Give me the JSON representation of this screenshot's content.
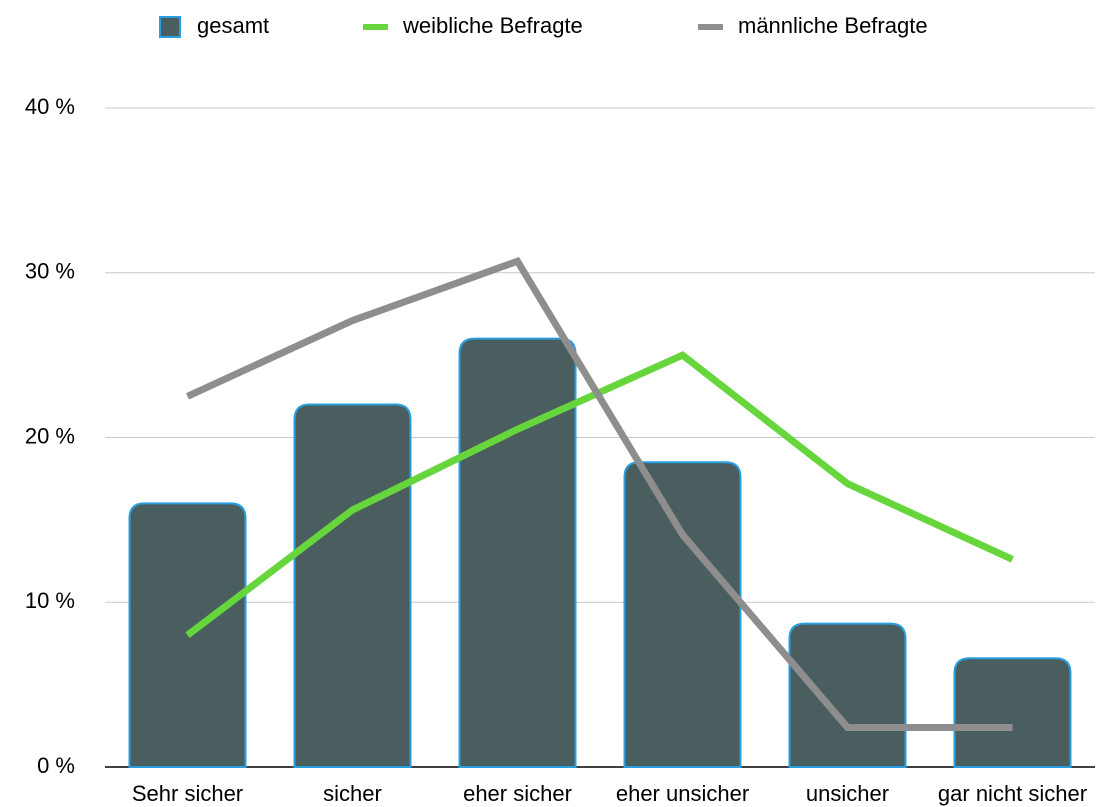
{
  "chart_data": {
    "type": "bar_line",
    "categories": [
      "Sehr sicher",
      "sicher",
      "eher sicher",
      "eher unsicher",
      "unsicher",
      "gar nicht sicher"
    ],
    "series": [
      {
        "name": "gesamt",
        "type": "bar",
        "color": "#4a5e60",
        "edge_color": "#2a9fe0",
        "values": [
          16,
          22,
          26,
          18.5,
          8.7,
          6.6
        ]
      },
      {
        "name": "weibliche Befragte",
        "type": "line",
        "color": "#66d63c",
        "values": [
          8,
          15.6,
          20.5,
          25,
          17.2,
          12.6
        ]
      },
      {
        "name": "männliche Befragte",
        "type": "line",
        "color": "#8e8e8e",
        "values": [
          22.5,
          27.1,
          30.7,
          14.1,
          2.4,
          2.4
        ]
      }
    ],
    "ylim": [
      0,
      40
    ],
    "yticks": [
      {
        "value": 0,
        "label": "0 %"
      },
      {
        "value": 10,
        "label": "10 %"
      },
      {
        "value": 20,
        "label": "20 %"
      },
      {
        "value": 30,
        "label": "30 %"
      },
      {
        "value": 40,
        "label": "40 %"
      }
    ],
    "grid": true,
    "legend": "top"
  }
}
